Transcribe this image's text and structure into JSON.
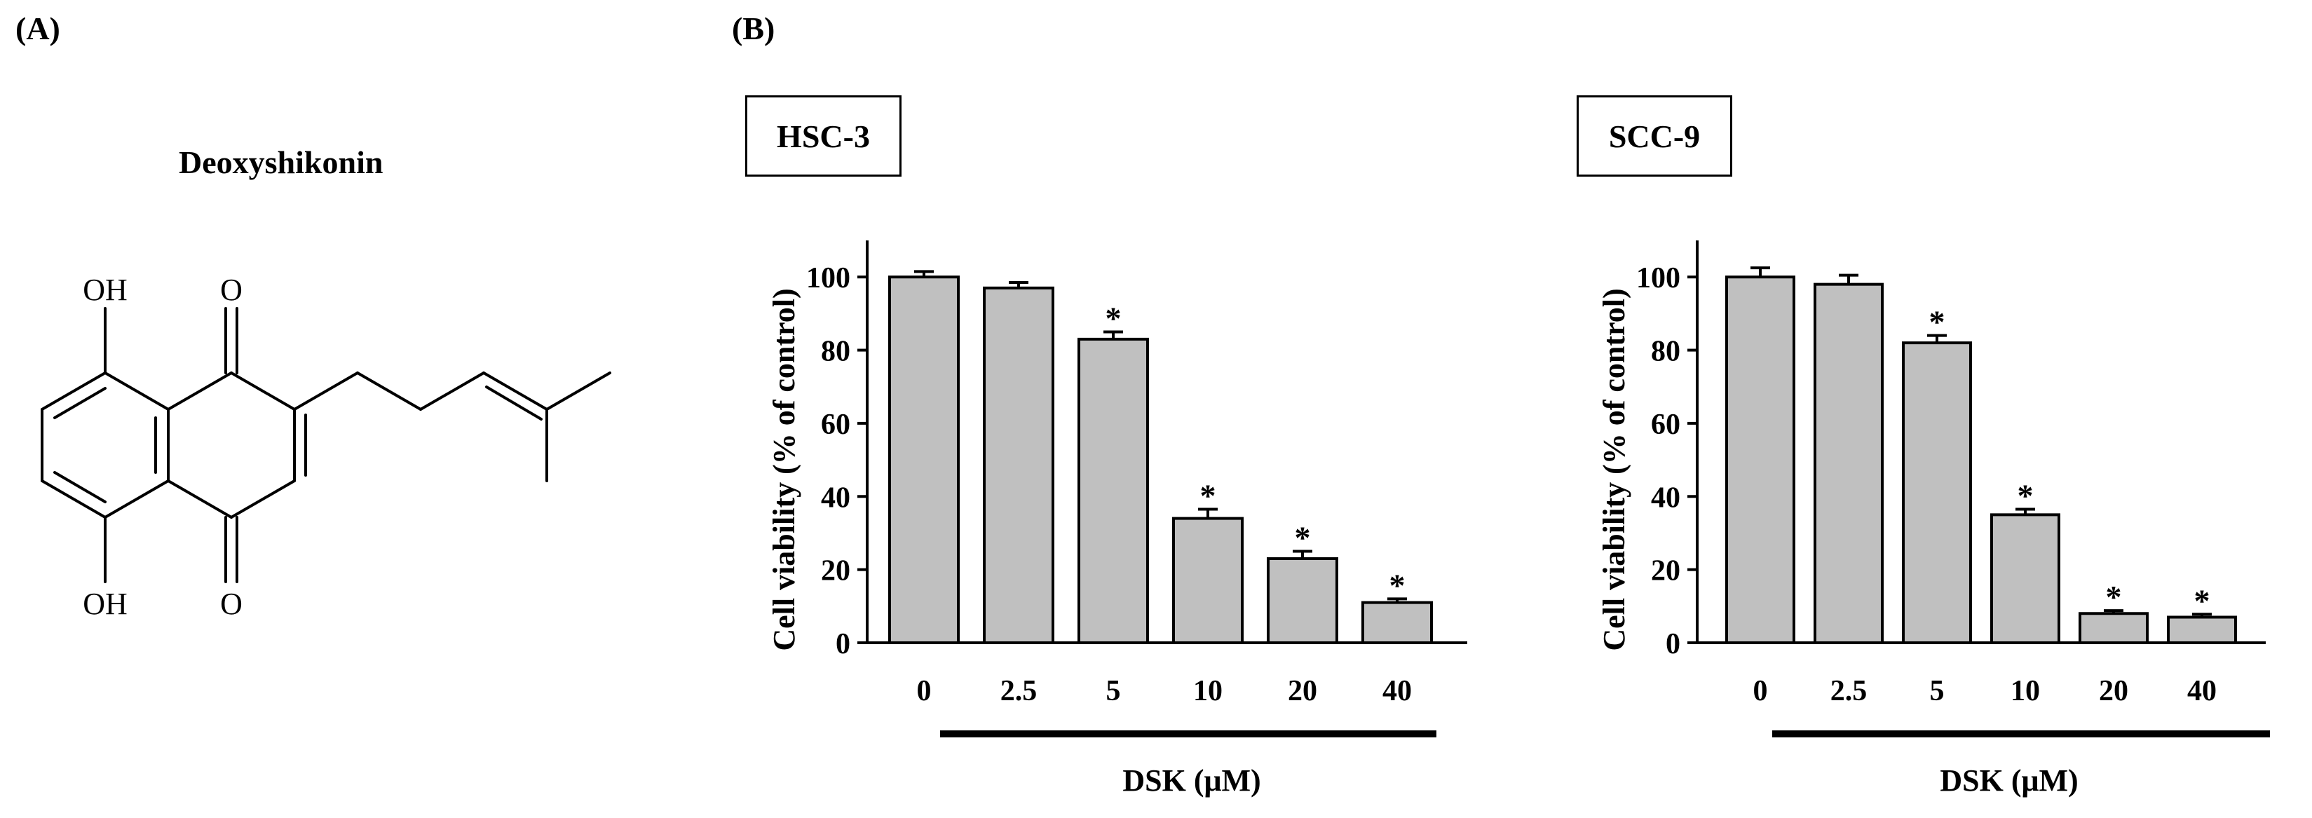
{
  "panels": {
    "a_label": "(A)",
    "b_label": "(B)"
  },
  "compound": {
    "name": "Deoxyshikonin",
    "atoms": {
      "oh_top": "OH",
      "o_top": "O",
      "oh_bottom": "OH",
      "o_bottom": "O"
    }
  },
  "chart_data": [
    {
      "type": "bar",
      "title": "HSC-3",
      "categories": [
        "0",
        "2.5",
        "5",
        "10",
        "20",
        "40"
      ],
      "values": [
        100,
        97,
        83,
        34,
        23,
        11
      ],
      "errors": [
        1.5,
        1.5,
        2,
        2.5,
        2,
        1
      ],
      "significant": [
        false,
        false,
        true,
        true,
        true,
        true
      ],
      "significance_marker": "*",
      "ylabel": "Cell viability (% of control)",
      "xlabel": "DSK (μM)",
      "ylim": [
        0,
        110
      ],
      "yticks": [
        "0",
        "20",
        "40",
        "60",
        "80",
        "100"
      ],
      "bar_color": "#c0c0c0"
    },
    {
      "type": "bar",
      "title": "SCC-9",
      "categories": [
        "0",
        "2.5",
        "5",
        "10",
        "20",
        "40"
      ],
      "values": [
        100,
        98,
        82,
        35,
        8,
        7
      ],
      "errors": [
        2.5,
        2.5,
        2,
        1.5,
        0.8,
        0.8
      ],
      "significant": [
        false,
        false,
        true,
        true,
        true,
        true
      ],
      "significance_marker": "*",
      "ylabel": "Cell viability (% of control)",
      "xlabel": "DSK (μM)",
      "ylim": [
        0,
        110
      ],
      "yticks": [
        "0",
        "20",
        "40",
        "60",
        "80",
        "100"
      ],
      "bar_color": "#c0c0c0"
    }
  ]
}
